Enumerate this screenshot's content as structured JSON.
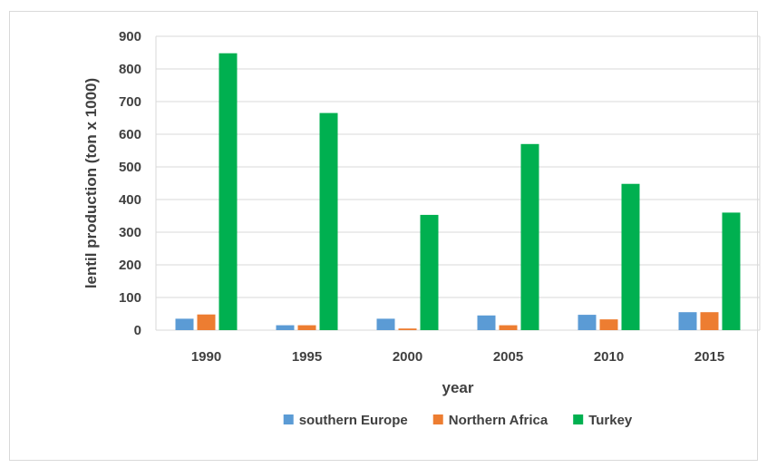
{
  "chart_data": {
    "type": "bar",
    "title": "",
    "xlabel": "year",
    "ylabel": "lentil production (ton x 1000)",
    "ylim": [
      0,
      900
    ],
    "yticks": [
      0,
      100,
      200,
      300,
      400,
      500,
      600,
      700,
      800,
      900
    ],
    "categories": [
      "1990",
      "1995",
      "2000",
      "2005",
      "2010",
      "2015"
    ],
    "series": [
      {
        "name": "southern Europe",
        "color": "#5b9bd5",
        "values": [
          35,
          15,
          35,
          45,
          47,
          55
        ]
      },
      {
        "name": "Northern Africa",
        "color": "#ed7d31",
        "values": [
          48,
          15,
          5,
          15,
          33,
          55
        ]
      },
      {
        "name": "Turkey",
        "color": "#00b050",
        "values": [
          848,
          665,
          353,
          570,
          448,
          360
        ]
      }
    ],
    "grid": true,
    "legend_position": "bottom"
  }
}
